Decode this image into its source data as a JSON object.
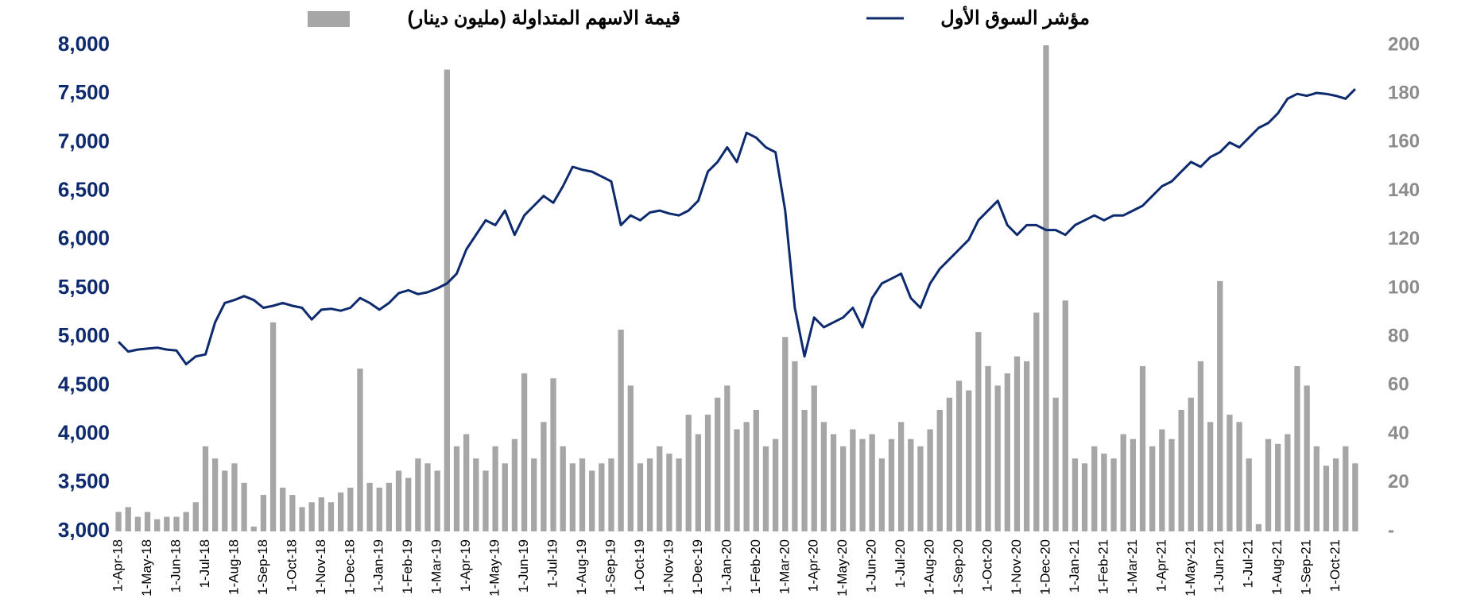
{
  "chart_data": {
    "type": "bar-line",
    "categories": [
      "1-Apr-18",
      null,
      null,
      "1-May-18",
      null,
      null,
      "1-Jun-18",
      null,
      null,
      "1-Jul-18",
      null,
      null,
      "1-Aug-18",
      null,
      null,
      "1-Sep-18",
      null,
      null,
      "1-Oct-18",
      null,
      null,
      "1-Nov-18",
      null,
      null,
      "1-Dec-18",
      null,
      null,
      "1-Jan-19",
      null,
      null,
      "1-Feb-19",
      null,
      null,
      "1-Mar-19",
      null,
      null,
      "1-Apr-19",
      null,
      null,
      "1-May-19",
      null,
      null,
      "1-Jun-19",
      null,
      null,
      "1-Jul-19",
      null,
      null,
      "1-Aug-19",
      null,
      null,
      "1-Sep-19",
      null,
      null,
      "1-Oct-19",
      null,
      null,
      "1-Nov-19",
      null,
      null,
      "1-Dec-19",
      null,
      null,
      "1-Jan-20",
      null,
      null,
      "1-Feb-20",
      null,
      null,
      "1-Mar-20",
      null,
      null,
      "1-Apr-20",
      null,
      null,
      "1-May-20",
      null,
      null,
      "1-Jun-20",
      null,
      null,
      "1-Jul-20",
      null,
      null,
      "1-Aug-20",
      null,
      null,
      "1-Sep-20",
      null,
      null,
      "1-Oct-20",
      null,
      null,
      "1-Nov-20",
      null,
      null,
      "1-Dec-20",
      null,
      null,
      "1-Jan-21",
      null,
      null,
      "1-Feb-21",
      null,
      null,
      "1-Mar-21",
      null,
      null,
      "1-Apr-21",
      null,
      null,
      "1-May-21",
      null,
      null,
      "1-Jun-21",
      null,
      null,
      "1-Jul-21",
      null,
      null,
      "1-Aug-21",
      null,
      null,
      "1-Sep-21",
      null,
      null,
      "1-Oct-21",
      null,
      null
    ],
    "series": [
      {
        "name": "مؤشر السوق الأول",
        "type": "line",
        "color": "#0d2a6e",
        "values": [
          4950,
          4850,
          4870,
          4880,
          4890,
          4870,
          4860,
          4720,
          4800,
          4820,
          5150,
          5350,
          5380,
          5420,
          5380,
          5300,
          5320,
          5350,
          5320,
          5300,
          5180,
          5280,
          5290,
          5270,
          5300,
          5400,
          5350,
          5280,
          5350,
          5450,
          5480,
          5440,
          5460,
          5500,
          5550,
          5650,
          5900,
          6050,
          6200,
          6150,
          6300,
          6050,
          6250,
          6350,
          6450,
          6380,
          6550,
          6750,
          6720,
          6700,
          6650,
          6600,
          6150,
          6250,
          6200,
          6280,
          6300,
          6270,
          6250,
          6300,
          6400,
          6700,
          6800,
          6950,
          6800,
          7100,
          7050,
          6950,
          6900,
          6300,
          5300,
          4800,
          5200,
          5100,
          5150,
          5200,
          5300,
          5100,
          5400,
          5550,
          5600,
          5650,
          5400,
          5300,
          5550,
          5700,
          5800,
          5900,
          6000,
          6200,
          6300,
          6400,
          6150,
          6050,
          6150,
          6150,
          6100,
          6100,
          6050,
          6150,
          6200,
          6250,
          6200,
          6250,
          6250,
          6300,
          6350,
          6450,
          6550,
          6600,
          6700,
          6800,
          6750,
          6850,
          6900,
          7000,
          6950,
          7050,
          7150,
          7200,
          7300,
          7450,
          7500,
          7480,
          7510,
          7500,
          7480,
          7450,
          7550
        ]
      },
      {
        "name": "قيمة الاسهم المتداولة (مليون دينار)",
        "type": "bar",
        "axis": "y2",
        "color": "#a6a6a6",
        "values": [
          8,
          10,
          6,
          8,
          5,
          6,
          6,
          8,
          12,
          35,
          30,
          25,
          28,
          20,
          2,
          15,
          86,
          18,
          15,
          10,
          12,
          14,
          12,
          16,
          18,
          67,
          20,
          18,
          20,
          25,
          22,
          30,
          28,
          25,
          190,
          35,
          40,
          30,
          25,
          35,
          28,
          38,
          65,
          30,
          45,
          63,
          35,
          28,
          30,
          25,
          28,
          30,
          83,
          60,
          28,
          30,
          35,
          32,
          30,
          48,
          40,
          48,
          55,
          60,
          42,
          45,
          50,
          35,
          38,
          80,
          70,
          50,
          60,
          45,
          40,
          35,
          42,
          38,
          40,
          30,
          38,
          45,
          38,
          35,
          42,
          50,
          55,
          62,
          58,
          82,
          68,
          60,
          65,
          72,
          70,
          90,
          200,
          55,
          95,
          30,
          28,
          35,
          32,
          30,
          40,
          38,
          68,
          35,
          42,
          38,
          50,
          55,
          70,
          45,
          103,
          48,
          45,
          30,
          3,
          38,
          36,
          40,
          68,
          60,
          35,
          27,
          30,
          35,
          28
        ]
      }
    ],
    "ylim": [
      3000,
      8000
    ],
    "yticks": [
      {
        "value": 3000,
        "label": "3,000"
      },
      {
        "value": 3500,
        "label": "3,500"
      },
      {
        "value": 4000,
        "label": "4,000"
      },
      {
        "value": 4500,
        "label": "4,500"
      },
      {
        "value": 5000,
        "label": "5,000"
      },
      {
        "value": 5500,
        "label": "5,500"
      },
      {
        "value": 6000,
        "label": "6,000"
      },
      {
        "value": 6500,
        "label": "6,500"
      },
      {
        "value": 7000,
        "label": "7,000"
      },
      {
        "value": 7500,
        "label": "7,500"
      },
      {
        "value": 8000,
        "label": "8,000"
      }
    ],
    "y2lim": [
      0,
      200
    ],
    "y2ticks": [
      {
        "value": 0,
        "label": "-"
      },
      20,
      40,
      60,
      80,
      100,
      120,
      140,
      160,
      180,
      200
    ],
    "legend": "top"
  }
}
